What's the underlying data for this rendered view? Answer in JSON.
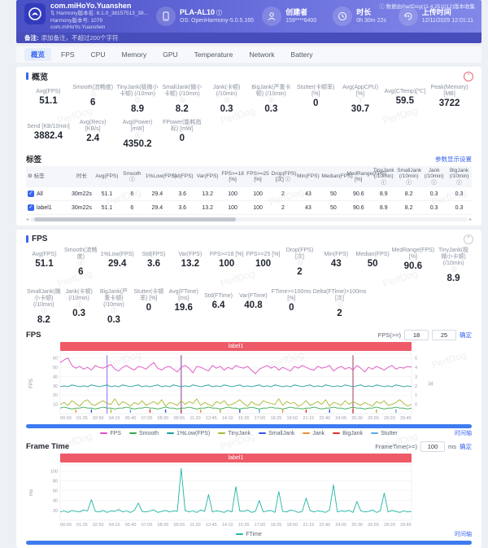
{
  "watermark": "PerfDog",
  "header": {
    "app": {
      "name": "com.miHoYo.Yuanshen",
      "line1": "Harmony版本名: 6.1.0_38157513_38...",
      "line2": "Harmony版本号: 1079",
      "line3": "com.miHoYo.Yuanshen"
    },
    "device": {
      "name": "PLA-AL10",
      "os": "OS: OpenHarmony-5.0.5.165"
    },
    "creator": {
      "label": "创建者",
      "value": "159****6400"
    },
    "duration": {
      "label": "时长",
      "value": "0h 30m 22s"
    },
    "upload": {
      "label": "上传时间",
      "value": "12/11/2025 12:01:11"
    },
    "collect_note": "数据由PerfDog(11.4.251012)版本收集",
    "note_label": "备注:",
    "note_text": "添加备注，不超过200个字符"
  },
  "tabs": [
    "概览",
    "FPS",
    "CPU",
    "Memory",
    "GPU",
    "Temperature",
    "Network",
    "Battery"
  ],
  "overview": {
    "title": "概览",
    "row1": [
      {
        "l": "Avg(FPS)",
        "v": "51.1",
        "i": false
      },
      {
        "l": "Smooth(流畅度)",
        "v": "6",
        "i": true
      },
      {
        "l": "TinyJank(极微小卡顿) (/10min)",
        "v": "8.9",
        "i": true
      },
      {
        "l": "SmallJank(微小卡顿) (/10min)",
        "v": "8.2",
        "i": true
      },
      {
        "l": "Jank(卡顿) (/10min)",
        "v": "0.3",
        "i": true
      },
      {
        "l": "BigJank(严重卡顿) (/10min)",
        "v": "0.3",
        "i": true
      },
      {
        "l": "Stutter(卡顿率) [%]",
        "v": "0",
        "i": false
      },
      {
        "l": "Avg(AppCPU) [%]",
        "v": "30.7",
        "i": true
      },
      {
        "l": "Avg(CTemp)[℃]",
        "v": "59.5",
        "i": false
      },
      {
        "l": "Peak(Memory) [MB]",
        "v": "3722",
        "i": false
      }
    ],
    "row2": [
      {
        "l": "Send [KB/10min]",
        "v": "3882.4",
        "i": false
      },
      {
        "l": "Avg(Recv) [KB/s]",
        "v": "2.4",
        "i": false
      },
      {
        "l": "Avg(Power) [mW]",
        "v": "4350.2",
        "i": true
      },
      {
        "l": "FPower(能耗指标) [mW]",
        "v": "0",
        "i": false
      }
    ],
    "labels_title": "标签",
    "settings_link": "参数显示设置",
    "table": {
      "headers": [
        "标签",
        "时长",
        "Avg(FPS)",
        "Smooth ⓘ",
        "1%Low(FPS)",
        "Std(FPS)",
        "Var(FPS)",
        "FPS>=18 [%]",
        "FPS>=25 [%]",
        "Drop(FPS) [次] ⓘ",
        "Min(FPS)",
        "Median(FPS)",
        "MedRange(FPS)[%]",
        "TinyJank (/10min) ⓘ",
        "SmallJank (/10min) ⓘ",
        "Jank (/10min) ⓘ",
        "BigJank (/10min) ⓘ"
      ],
      "rows": [
        {
          "name": "All",
          "checked": true,
          "values": [
            "30m22s",
            "51.1",
            "6",
            "29.4",
            "3.6",
            "13.2",
            "100",
            "100",
            "2",
            "43",
            "50",
            "90.6",
            "8.9",
            "8.2",
            "0.3",
            "0.3"
          ]
        },
        {
          "name": "label1",
          "checked": true,
          "values": [
            "30m22s",
            "51.1",
            "6",
            "29.4",
            "3.6",
            "13.2",
            "100",
            "100",
            "2",
            "43",
            "50",
            "90.6",
            "8.9",
            "8.2",
            "0.3",
            "0.3"
          ]
        }
      ]
    }
  },
  "fps_section": {
    "title": "FPS",
    "row1": [
      {
        "l": "Avg(FPS)",
        "v": "51.1",
        "i": false
      },
      {
        "l": "Smooth(流畅度)",
        "v": "6",
        "i": true
      },
      {
        "l": "1%Low(FPS)",
        "v": "29.4",
        "i": false
      },
      {
        "l": "Std(FPS)",
        "v": "3.6",
        "i": false
      },
      {
        "l": "Var(FPS)",
        "v": "13.2",
        "i": false
      },
      {
        "l": "FPS>=18 [%]",
        "v": "100",
        "i": false
      },
      {
        "l": "FPS>=25 [%]",
        "v": "100",
        "i": false
      },
      {
        "l": "Drop(FPS) [次]",
        "v": "2",
        "i": true
      },
      {
        "l": "Min(FPS)",
        "v": "43",
        "i": false
      },
      {
        "l": "Median(FPS)",
        "v": "50",
        "i": false
      },
      {
        "l": "MedRange(FPS)[%]",
        "v": "90.6",
        "i": false
      },
      {
        "l": "TinyJank(极微小卡顿) (/10min)",
        "v": "8.9",
        "i": true
      }
    ],
    "row2": [
      {
        "l": "SmallJank(微小卡顿) (/10min)",
        "v": "8.2",
        "i": true
      },
      {
        "l": "Jank(卡顿) (/10min)",
        "v": "0.3",
        "i": true
      },
      {
        "l": "BigJank(严重卡顿) (/10min)",
        "v": "0.3",
        "i": true
      },
      {
        "l": "Stutter(卡顿率) [%]",
        "v": "0",
        "i": false
      },
      {
        "l": "Avg(FTime) [ms]",
        "v": "19.6",
        "i": false
      },
      {
        "l": "Std(FTime)",
        "v": "6.4",
        "i": false
      },
      {
        "l": "Var(FTime)",
        "v": "40.8",
        "i": false
      },
      {
        "l": "FTime>=100ms [%]",
        "v": "0",
        "i": false
      },
      {
        "l": "Delta(FTime)>100ms [次]",
        "v": "2",
        "i": true
      }
    ],
    "chart_title": "FPS",
    "threshold_label": "FPS(>=)",
    "threshold_values": [
      "18",
      "25"
    ],
    "apply_label": "确定",
    "band_label": "label1",
    "legend": [
      {
        "label": "FPS",
        "color": "#e04fc0"
      },
      {
        "label": "Smooth",
        "color": "#36a94e"
      },
      {
        "label": "1%Low(FPS)",
        "color": "#1f9e9e"
      },
      {
        "label": "TinyJank",
        "color": "#a8b832"
      },
      {
        "label": "SmallJank",
        "color": "#2f54eb"
      },
      {
        "label": "Jank",
        "color": "#f08c33"
      },
      {
        "label": "BigJank",
        "color": "#e03131"
      },
      {
        "label": "Stutter",
        "color": "#58a9e8"
      }
    ],
    "timeline_link": "时间轴"
  },
  "frametime_section": {
    "title": "Frame Time",
    "threshold_label": "FrameTime(>=)",
    "threshold_value": "100",
    "unit": "ms",
    "apply_label": "确定",
    "band_label": "label1",
    "legend": [
      {
        "label": "FTime",
        "color": "#1fb5a3"
      }
    ],
    "timeline_link": "时间轴"
  },
  "chart_data": [
    {
      "type": "line",
      "title": "FPS",
      "ylabel": "FPS",
      "ylabel_right": "次",
      "ylim": [
        0,
        65
      ],
      "yticks": [
        60,
        50,
        40,
        30,
        20,
        10
      ],
      "yticks_right": [
        "5",
        "4",
        "3",
        "2",
        "1",
        "0"
      ],
      "x_tick_labels": [
        "00:00",
        "01:25",
        "02:50",
        "04:15",
        "05:40",
        "07:05",
        "08:30",
        "09:55",
        "11:20",
        "12:45",
        "14:10",
        "15:35",
        "17:00",
        "18:25",
        "19:50",
        "21:15",
        "22:40",
        "24:05",
        "25:30",
        "26:55",
        "28:20",
        "29:45"
      ],
      "series": [
        {
          "name": "FPS",
          "color": "#e04fc0",
          "values": [
            55,
            58,
            60,
            52,
            49,
            51,
            48,
            50,
            47,
            52,
            50,
            49,
            51,
            53,
            48,
            46,
            50,
            52,
            49,
            47,
            51,
            50,
            48,
            52,
            55,
            49,
            47,
            50,
            51,
            48,
            45,
            50,
            52,
            49,
            44,
            51,
            50,
            48,
            46,
            52,
            49,
            51,
            47,
            50,
            48,
            52,
            50,
            49,
            51,
            47,
            43,
            48,
            50,
            52,
            49,
            51,
            47,
            50,
            48,
            46,
            51,
            49,
            52,
            50,
            48,
            47,
            51,
            49,
            50,
            52,
            46,
            49,
            51,
            48,
            50,
            47,
            52,
            49,
            45,
            50,
            48,
            51,
            49,
            47,
            50,
            52,
            48,
            50,
            49,
            51,
            50
          ]
        },
        {
          "name": "1%Low(FPS)",
          "color": "#1f9e9e",
          "values": [
            29,
            30,
            29,
            31,
            30,
            29,
            30,
            29,
            31,
            30,
            29,
            30,
            31,
            29,
            30,
            29,
            31,
            30,
            29,
            30,
            31,
            29,
            30,
            29,
            30,
            31,
            29,
            30,
            29,
            31,
            30,
            29,
            30,
            29,
            31,
            30,
            29,
            30,
            31,
            29,
            30,
            29,
            31,
            30,
            29,
            30,
            31,
            29,
            30,
            29,
            30,
            31,
            29,
            30,
            29,
            31,
            30,
            29,
            30,
            29,
            31,
            30,
            29,
            30,
            31,
            29,
            30,
            29,
            31,
            30,
            29,
            30,
            29,
            31,
            30,
            29,
            30,
            31,
            29,
            30,
            29,
            31,
            30,
            29,
            30,
            29,
            31,
            30,
            29,
            30,
            29
          ]
        },
        {
          "name": "TinyJank",
          "color": "#a8b832",
          "values": [
            10,
            12,
            9,
            14,
            11,
            8,
            13,
            15,
            10,
            9,
            12,
            14,
            11,
            10,
            16,
            9,
            13,
            11,
            8,
            12,
            10,
            14,
            9,
            11,
            13,
            10,
            15,
            8,
            12,
            11,
            9,
            14,
            10,
            13,
            11,
            16,
            9,
            12,
            10,
            8,
            13,
            11,
            14,
            9,
            10,
            12,
            15,
            11,
            8,
            13,
            10,
            9,
            14,
            12,
            11,
            10,
            16,
            9,
            13,
            11,
            12,
            8,
            10,
            14,
            9,
            11,
            13,
            10,
            15,
            8,
            12,
            11,
            9,
            14,
            10,
            13,
            11,
            9,
            12,
            10,
            8,
            13,
            11,
            14,
            9,
            10,
            12,
            15,
            11,
            8,
            10
          ]
        },
        {
          "name": "Smooth",
          "color": "#36a94e",
          "values": [
            6,
            7,
            6,
            5,
            6,
            6,
            7,
            6,
            6,
            5,
            6,
            7,
            6,
            6,
            5,
            6,
            6,
            7,
            6,
            5,
            6,
            6,
            7,
            6,
            6,
            5,
            6,
            7,
            6,
            6,
            5,
            6,
            6,
            7,
            6,
            5,
            6,
            6,
            7,
            6,
            6,
            5,
            6,
            7,
            6,
            6,
            5,
            6,
            6,
            7,
            6,
            5,
            6,
            6,
            7,
            6,
            6,
            5,
            6,
            7,
            6,
            6,
            5,
            6,
            6,
            7,
            6,
            5,
            6,
            6,
            7,
            6,
            6,
            5,
            6,
            7,
            6,
            6,
            5,
            6,
            6,
            7,
            6,
            5,
            6,
            6,
            7,
            6,
            6,
            5,
            6
          ]
        }
      ],
      "events": [
        {
          "i": 12,
          "color": "#8b5cf6"
        },
        {
          "i": 31,
          "color": "#7b2d8e"
        },
        {
          "i": 75,
          "color": "#9d2f4f"
        }
      ],
      "marks": [
        {
          "i": 4,
          "color": "#f08c33"
        },
        {
          "i": 8,
          "color": "#2f54eb"
        },
        {
          "i": 13,
          "color": "#a8b832"
        },
        {
          "i": 18,
          "color": "#58a9e8"
        },
        {
          "i": 23,
          "color": "#e03131"
        },
        {
          "i": 27,
          "color": "#2f54eb"
        },
        {
          "i": 31,
          "color": "#e03131"
        },
        {
          "i": 36,
          "color": "#f08c33"
        },
        {
          "i": 41,
          "color": "#a8b832"
        },
        {
          "i": 46,
          "color": "#2f54eb"
        },
        {
          "i": 51,
          "color": "#58a9e8"
        },
        {
          "i": 57,
          "color": "#f08c33"
        },
        {
          "i": 63,
          "color": "#e03131"
        },
        {
          "i": 69,
          "color": "#2f54eb"
        },
        {
          "i": 75,
          "color": "#e03131"
        },
        {
          "i": 81,
          "color": "#a8b832"
        },
        {
          "i": 86,
          "color": "#58a9e8"
        }
      ]
    },
    {
      "type": "line",
      "title": "Frame Time",
      "ylabel": "ms",
      "ylim": [
        0,
        112
      ],
      "yticks": [
        100,
        80,
        60,
        40,
        20
      ],
      "x_tick_labels": [
        "00:00",
        "01:25",
        "02:50",
        "04:15",
        "05:40",
        "07:05",
        "08:30",
        "09:55",
        "11:20",
        "12:45",
        "14:10",
        "15:35",
        "17:00",
        "18:25",
        "19:50",
        "21:15",
        "22:40",
        "24:05",
        "25:30",
        "26:55",
        "28:20",
        "29:45"
      ],
      "series": [
        {
          "name": "FTime",
          "color": "#1fb5a3",
          "values": [
            17,
            19,
            16,
            20,
            18,
            17,
            21,
            19,
            42,
            18,
            17,
            20,
            16,
            19,
            18,
            22,
            17,
            19,
            16,
            20,
            35,
            18,
            17,
            19,
            21,
            16,
            18,
            20,
            17,
            19,
            18,
            105,
            20,
            17,
            19,
            16,
            21,
            18,
            52,
            17,
            19,
            18,
            16,
            20,
            17,
            68,
            19,
            18,
            21,
            16,
            18,
            40,
            17,
            19,
            20,
            16,
            58,
            18,
            17,
            21,
            19,
            16,
            18,
            45,
            20,
            17,
            19,
            18,
            16,
            21,
            72,
            17,
            19,
            18,
            20,
            16,
            38,
            19,
            17,
            18,
            21,
            16,
            19,
            55,
            17,
            20,
            18,
            16,
            19,
            17,
            18
          ]
        }
      ]
    }
  ]
}
